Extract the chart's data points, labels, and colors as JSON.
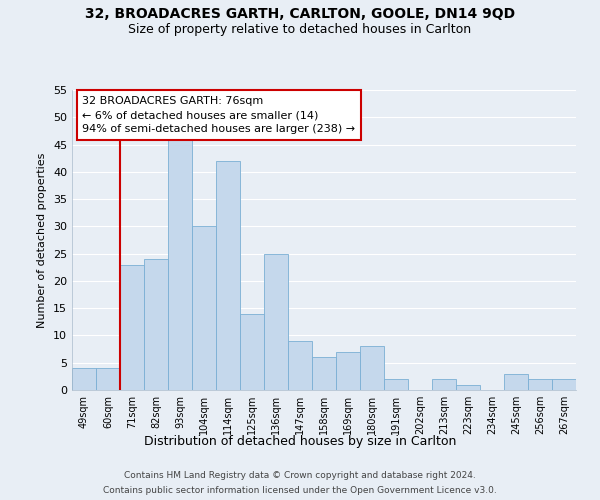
{
  "title1": "32, BROADACRES GARTH, CARLTON, GOOLE, DN14 9QD",
  "title2": "Size of property relative to detached houses in Carlton",
  "xlabel": "Distribution of detached houses by size in Carlton",
  "ylabel": "Number of detached properties",
  "categories": [
    "49sqm",
    "60sqm",
    "71sqm",
    "82sqm",
    "93sqm",
    "104sqm",
    "114sqm",
    "125sqm",
    "136sqm",
    "147sqm",
    "158sqm",
    "169sqm",
    "180sqm",
    "191sqm",
    "202sqm",
    "213sqm",
    "223sqm",
    "234sqm",
    "245sqm",
    "256sqm",
    "267sqm"
  ],
  "values": [
    4,
    4,
    23,
    24,
    46,
    30,
    42,
    14,
    25,
    9,
    6,
    7,
    8,
    2,
    0,
    2,
    1,
    0,
    3,
    2,
    2
  ],
  "bar_color": "#c5d8ec",
  "bar_edge_color": "#7aafd4",
  "vertical_line_color": "#cc0000",
  "vertical_line_index": 2,
  "ylim": [
    0,
    55
  ],
  "yticks": [
    0,
    5,
    10,
    15,
    20,
    25,
    30,
    35,
    40,
    45,
    50,
    55
  ],
  "annotation_text": "32 BROADACRES GARTH: 76sqm\n← 6% of detached houses are smaller (14)\n94% of semi-detached houses are larger (238) →",
  "annotation_box_facecolor": "#ffffff",
  "annotation_box_edgecolor": "#cc0000",
  "footer1": "Contains HM Land Registry data © Crown copyright and database right 2024.",
  "footer2": "Contains public sector information licensed under the Open Government Licence v3.0.",
  "bg_color": "#e8eef5",
  "grid_color": "#ffffff"
}
